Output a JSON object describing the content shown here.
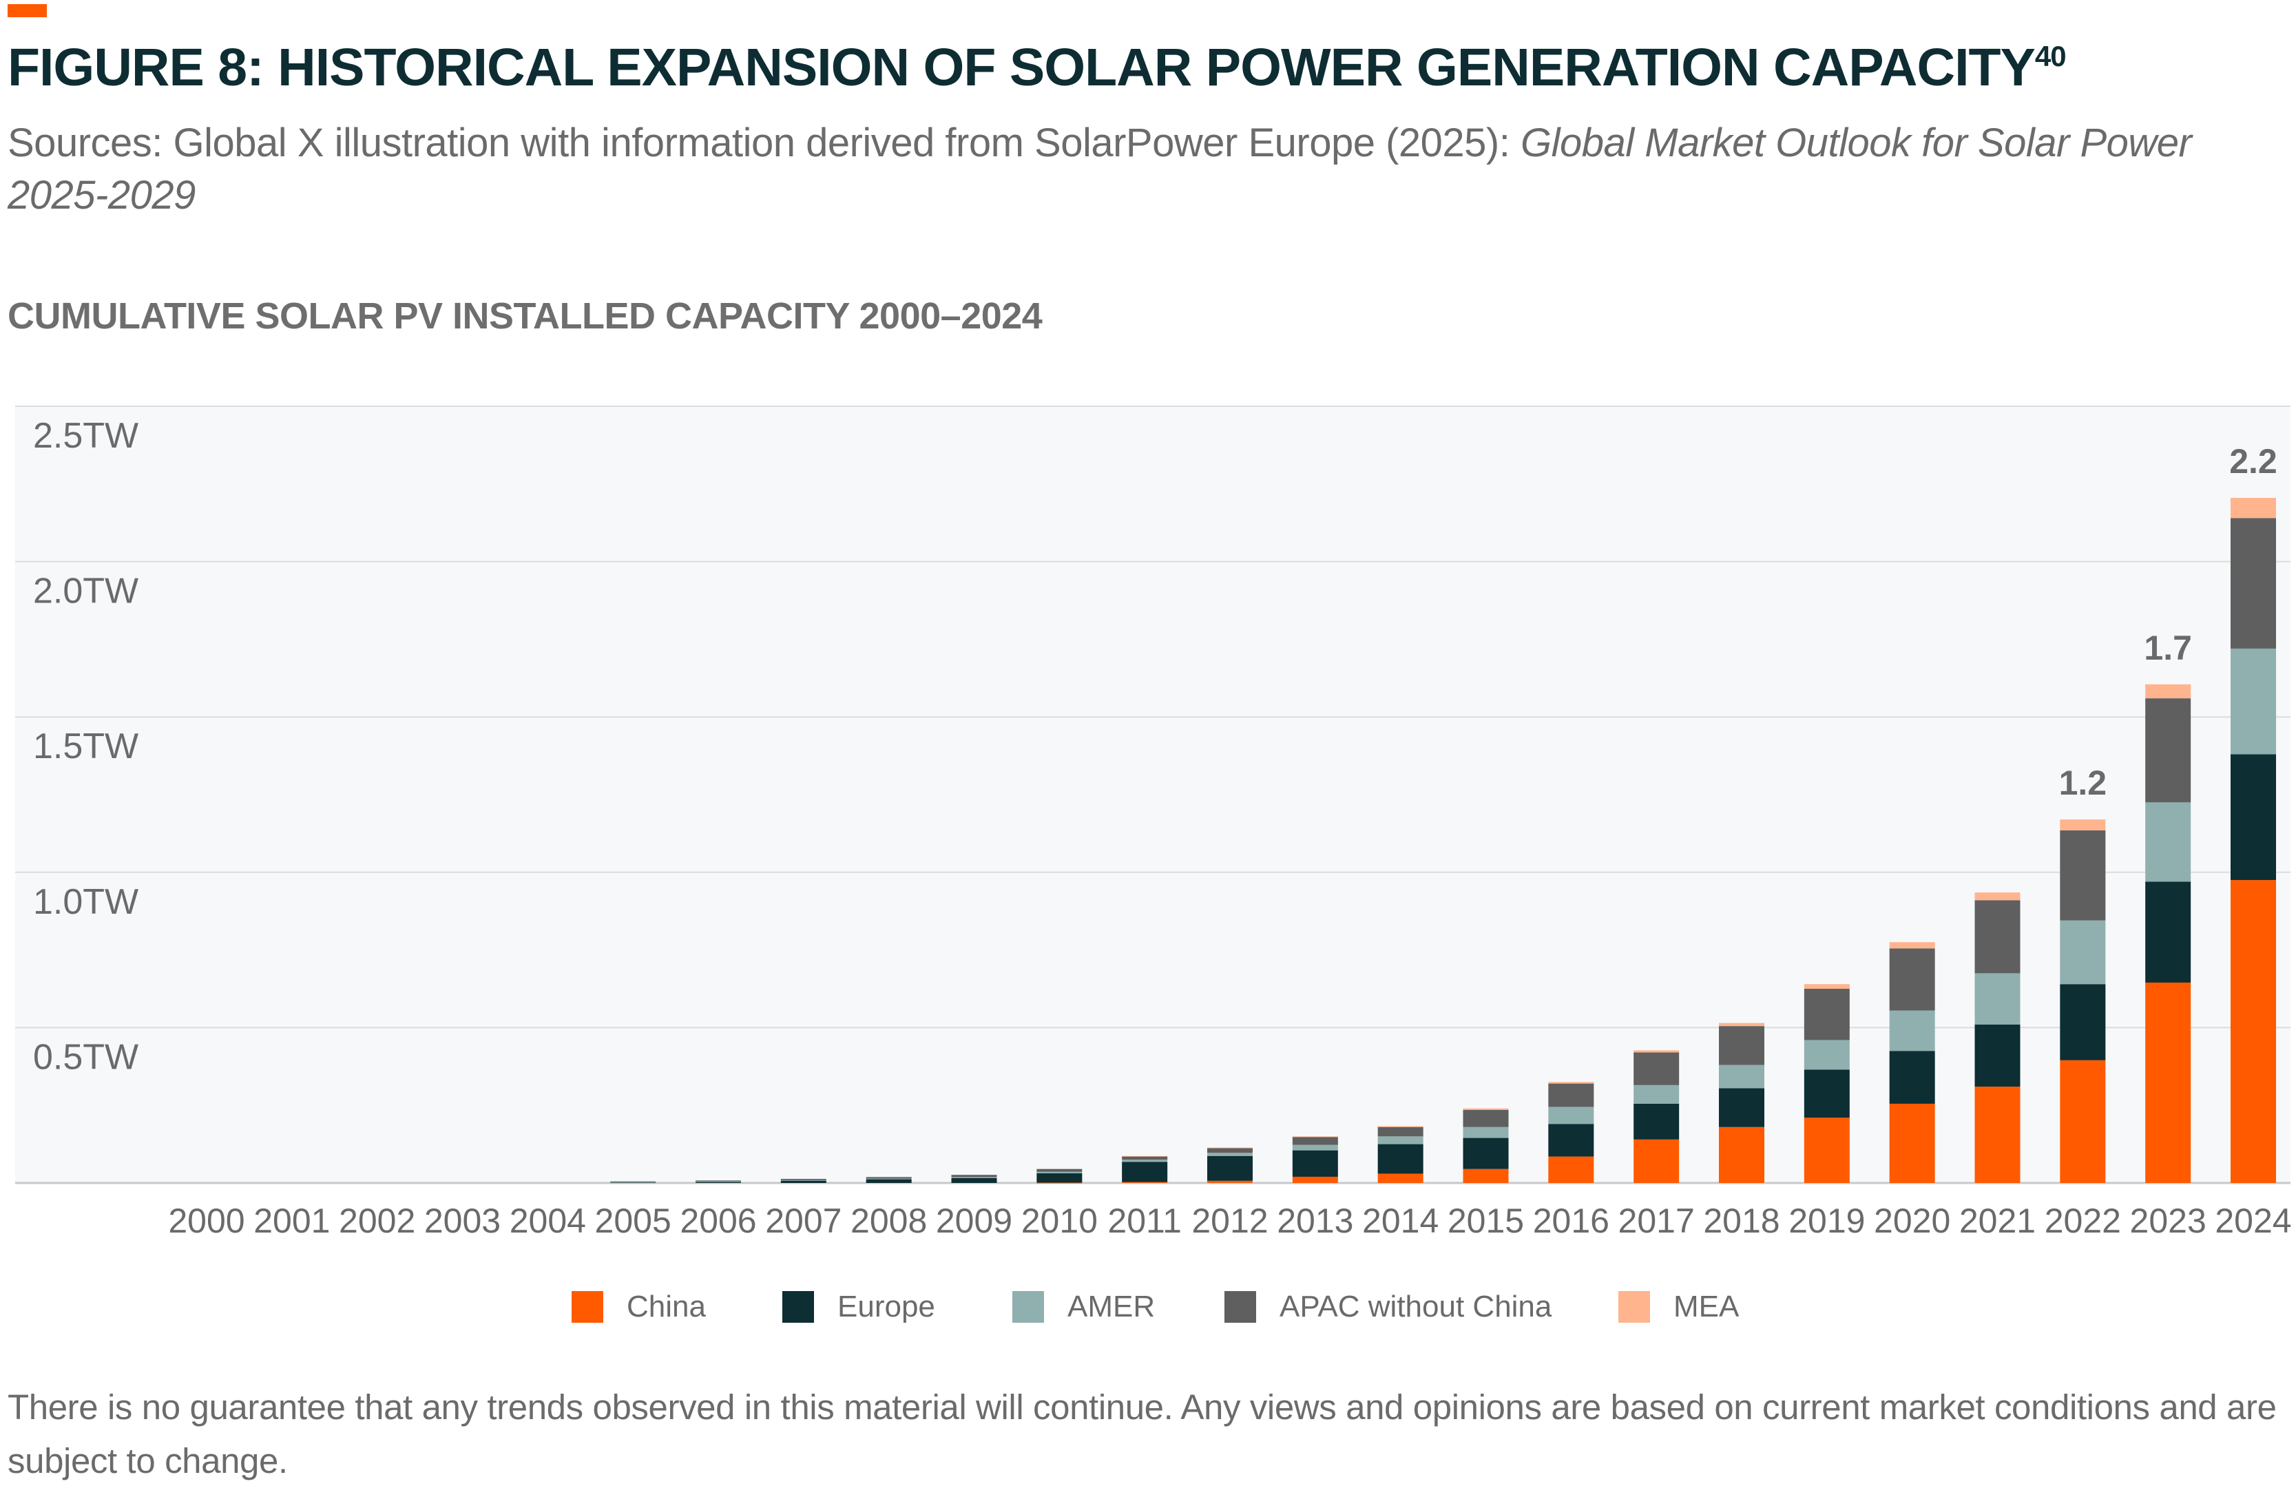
{
  "figure": {
    "title": "FIGURE 8: HISTORICAL EXPANSION OF SOLAR POWER GENERATION CAPACITY",
    "footnote_ref": "40",
    "sources_prefix": "Sources: Global X illustration with information derived from SolarPower Europe (2025): ",
    "sources_title": "Global Market Outlook for Solar Power 2025-2029",
    "disclaimer": "There is no guarantee that any trends observed in this material will continue. Any views and opinions are based on current market conditions and are subject to change."
  },
  "colors": {
    "accent": "#ff5a00",
    "title": "#0e2d33",
    "China": "#ff5a00",
    "Europe": "#0d2e33",
    "AMER": "#8fb0ae",
    "APAC without China": "#5f5f5f",
    "MEA": "#ffb48e",
    "plot_bg": "#f7f8fa",
    "grid": "#dcdcdc"
  },
  "chart_data": {
    "type": "bar",
    "stacked": true,
    "title": "CUMULATIVE SOLAR PV INSTALLED CAPACITY 2000–2024",
    "xlabel": "",
    "ylabel": "",
    "ylim": [
      0,
      2.5
    ],
    "y_ticks": [
      0.5,
      1.0,
      1.5,
      2.0,
      2.5
    ],
    "y_tick_labels": [
      "0.5TW",
      "1.0TW",
      "1.5TW",
      "2.0TW",
      "2.5TW"
    ],
    "grid": true,
    "legend_position": "bottom",
    "categories": [
      "2000",
      "2001",
      "2002",
      "2003",
      "2004",
      "2005",
      "2006",
      "2007",
      "2008",
      "2009",
      "2010",
      "2011",
      "2012",
      "2013",
      "2014",
      "2015",
      "2016",
      "2017",
      "2018",
      "2019",
      "2020",
      "2021",
      "2022",
      "2023",
      "2024"
    ],
    "series": [
      {
        "name": "China",
        "values": [
          0,
          0,
          0,
          0,
          0,
          0,
          0,
          0,
          0,
          0,
          0.001,
          0.003,
          0.007,
          0.02,
          0.03,
          0.045,
          0.085,
          0.14,
          0.18,
          0.21,
          0.255,
          0.31,
          0.395,
          0.645,
          0.975
        ]
      },
      {
        "name": "Europe",
        "values": [
          0,
          0,
          0,
          0,
          0,
          0.002,
          0.004,
          0.008,
          0.012,
          0.016,
          0.03,
          0.065,
          0.08,
          0.085,
          0.095,
          0.1,
          0.105,
          0.115,
          0.125,
          0.155,
          0.17,
          0.2,
          0.245,
          0.325,
          0.405
        ]
      },
      {
        "name": "AMER",
        "values": [
          0,
          0,
          0,
          0,
          0,
          0.001,
          0.001,
          0.001,
          0.002,
          0.003,
          0.005,
          0.007,
          0.01,
          0.018,
          0.025,
          0.035,
          0.055,
          0.06,
          0.075,
          0.095,
          0.13,
          0.165,
          0.205,
          0.255,
          0.34
        ]
      },
      {
        "name": "APAC without China",
        "values": [
          0,
          0,
          0,
          0,
          0,
          0.002,
          0.003,
          0.004,
          0.005,
          0.007,
          0.009,
          0.011,
          0.015,
          0.025,
          0.03,
          0.055,
          0.075,
          0.105,
          0.125,
          0.165,
          0.2,
          0.235,
          0.29,
          0.335,
          0.42
        ]
      },
      {
        "name": "MEA",
        "values": [
          0,
          0,
          0,
          0,
          0,
          0,
          0,
          0,
          0,
          0,
          0,
          0.001,
          0.002,
          0.002,
          0.003,
          0.005,
          0.005,
          0.007,
          0.01,
          0.015,
          0.02,
          0.025,
          0.035,
          0.045,
          0.065
        ]
      }
    ],
    "annotations": [
      {
        "category": "2022",
        "label": "1.2"
      },
      {
        "category": "2023",
        "label": "1.7"
      },
      {
        "category": "2024",
        "label": "2.2"
      }
    ]
  }
}
